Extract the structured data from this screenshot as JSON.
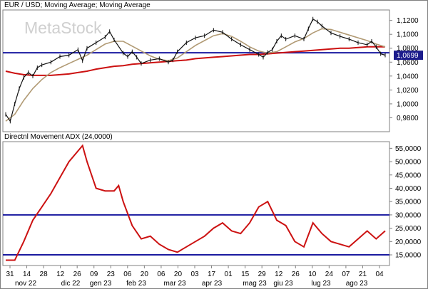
{
  "chart_data": [
    {
      "type": "line",
      "title": "EUR / USD; Moving Average; Moving Average",
      "watermark": "MetaStock",
      "ylim": [
        0.96,
        1.135
      ],
      "yticks": [
        "1,1200",
        "1,1000",
        "1,0800",
        "1,0600",
        "1,0400",
        "1,0200",
        "1,0000",
        "0,9800"
      ],
      "ytick_values": [
        1.12,
        1.1,
        1.08,
        1.06,
        1.04,
        1.02,
        1.0,
        0.98
      ],
      "last_value_label": "1,0699",
      "last_value": 1.0699,
      "horizontal_line": 1.0735,
      "x_index_range": [
        0,
        42
      ],
      "series": [
        {
          "color": "#000000",
          "style": "ohlc",
          "x": [
            0,
            0.5,
            1,
            1.5,
            2,
            2.5,
            3,
            3.5,
            4,
            5,
            6,
            7,
            8,
            8.5,
            9,
            10,
            11,
            11.5,
            12,
            13,
            13.5,
            14,
            14.5,
            15,
            16,
            17,
            18,
            18.5,
            19,
            20,
            21,
            22,
            23,
            24,
            25,
            26,
            27,
            28,
            28.5,
            29,
            29.5,
            30,
            30.5,
            31,
            32,
            33,
            33.5,
            34,
            34.5,
            35,
            36,
            37,
            38,
            39,
            40,
            40.5,
            41,
            41.5,
            42
          ],
          "y": [
            0.985,
            0.975,
            1.0,
            1.022,
            1.038,
            1.045,
            1.04,
            1.052,
            1.056,
            1.06,
            1.068,
            1.07,
            1.078,
            1.062,
            1.08,
            1.088,
            1.096,
            1.104,
            1.092,
            1.073,
            1.068,
            1.075,
            1.067,
            1.058,
            1.063,
            1.065,
            1.06,
            1.063,
            1.075,
            1.088,
            1.095,
            1.098,
            1.106,
            1.103,
            1.093,
            1.085,
            1.078,
            1.071,
            1.067,
            1.074,
            1.078,
            1.09,
            1.098,
            1.093,
            1.098,
            1.093,
            1.108,
            1.122,
            1.118,
            1.112,
            1.102,
            1.097,
            1.093,
            1.088,
            1.085,
            1.09,
            1.082,
            1.072,
            1.07
          ]
        },
        {
          "color": "#b19a74",
          "style": "line",
          "x": [
            0,
            1,
            2,
            3,
            4,
            5,
            6,
            7,
            8,
            9,
            10,
            11,
            12,
            13,
            14,
            15,
            16,
            17,
            18,
            19,
            20,
            21,
            22,
            23,
            24,
            25,
            26,
            27,
            28,
            29,
            30,
            31,
            32,
            33,
            34,
            35,
            36,
            37,
            38,
            39,
            40,
            41,
            42
          ],
          "y": [
            0.975,
            0.985,
            1.005,
            1.022,
            1.035,
            1.045,
            1.052,
            1.058,
            1.064,
            1.07,
            1.078,
            1.086,
            1.09,
            1.09,
            1.083,
            1.076,
            1.069,
            1.064,
            1.062,
            1.066,
            1.075,
            1.084,
            1.091,
            1.098,
            1.101,
            1.097,
            1.09,
            1.082,
            1.076,
            1.073,
            1.075,
            1.082,
            1.089,
            1.094,
            1.102,
            1.108,
            1.107,
            1.103,
            1.099,
            1.095,
            1.091,
            1.086,
            1.082
          ]
        },
        {
          "color": "#cc1111",
          "style": "line",
          "x": [
            0,
            1,
            2,
            3,
            4,
            5,
            6,
            7,
            8,
            9,
            10,
            11,
            12,
            13,
            14,
            15,
            16,
            17,
            18,
            19,
            20,
            21,
            22,
            23,
            24,
            25,
            26,
            27,
            28,
            29,
            30,
            31,
            32,
            33,
            34,
            35,
            36,
            37,
            38,
            39,
            40,
            41,
            42
          ],
          "y": [
            1.047,
            1.044,
            1.042,
            1.041,
            1.041,
            1.041,
            1.042,
            1.043,
            1.045,
            1.047,
            1.05,
            1.052,
            1.054,
            1.055,
            1.057,
            1.058,
            1.059,
            1.06,
            1.061,
            1.062,
            1.063,
            1.065,
            1.066,
            1.067,
            1.068,
            1.069,
            1.07,
            1.071,
            1.071,
            1.072,
            1.073,
            1.074,
            1.075,
            1.076,
            1.077,
            1.078,
            1.079,
            1.08,
            1.08,
            1.081,
            1.082,
            1.082,
            1.082
          ]
        }
      ]
    },
    {
      "type": "line",
      "title": "Directnl Movement ADX (24,0000)",
      "ylim": [
        11000,
        57500
      ],
      "yticks": [
        "55,0000",
        "50,0000",
        "45,0000",
        "40,0000",
        "35,0000",
        "30,0000",
        "25,0000",
        "20,0000",
        "15,0000"
      ],
      "ytick_values": [
        55000,
        50000,
        45000,
        40000,
        35000,
        30000,
        25000,
        20000,
        15000
      ],
      "horizontal_lines": [
        30000,
        15000
      ],
      "x_index_range": [
        0,
        42
      ],
      "series": [
        {
          "color": "#cc1111",
          "x": [
            0,
            1,
            2,
            3,
            4,
            5,
            6,
            7,
            8,
            8.5,
            9,
            10,
            11,
            12,
            12.5,
            13,
            14,
            15,
            16,
            17,
            18,
            19,
            20,
            21,
            22,
            23,
            24,
            25,
            26,
            27,
            28,
            29,
            30,
            31,
            32,
            33,
            34,
            35,
            36,
            37,
            38,
            39,
            40,
            41,
            42
          ],
          "y": [
            13000,
            13000,
            20000,
            28000,
            33000,
            38000,
            44000,
            50000,
            54000,
            56000,
            50000,
            40000,
            39000,
            39000,
            41000,
            35000,
            26000,
            21000,
            22000,
            19000,
            17000,
            16000,
            18000,
            20000,
            22000,
            25000,
            27000,
            24000,
            23000,
            27000,
            33000,
            35000,
            28000,
            26000,
            20000,
            18000,
            27000,
            23000,
            20000,
            19000,
            18000,
            21000,
            24000,
            21000,
            24000
          ]
        }
      ]
    }
  ],
  "x_axis": {
    "day_labels": [
      "31",
      "14",
      "28",
      "12",
      "26",
      "09",
      "23",
      "06",
      "20",
      "06",
      "20",
      "03",
      "17",
      "01",
      "15",
      "29",
      "12",
      "26",
      "10",
      "24",
      "07",
      "21",
      "04"
    ],
    "month_labels": [
      "nov 22",
      "dic 22",
      "gen 23",
      "feb 23",
      "mar 23",
      "apr 23",
      "mag 23",
      "giu 23",
      "lug 23",
      "ago 23"
    ]
  }
}
